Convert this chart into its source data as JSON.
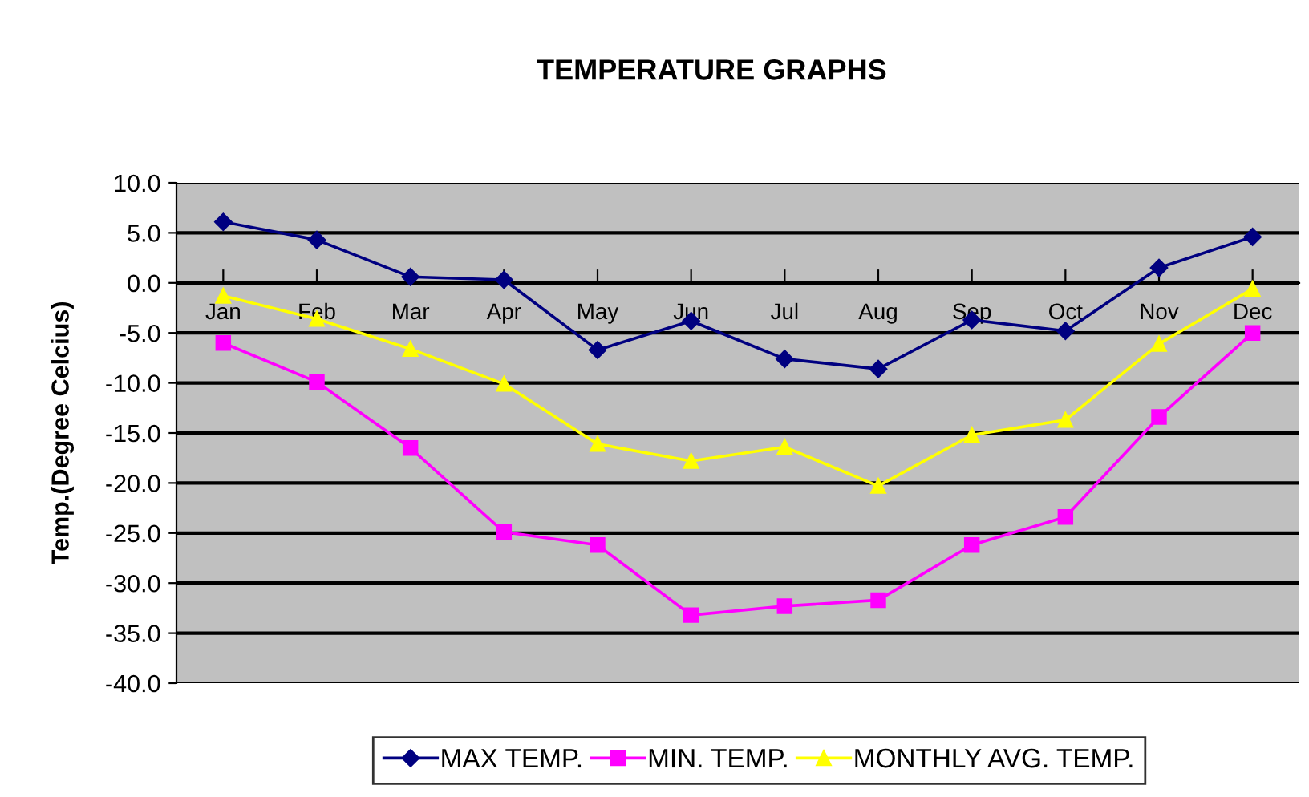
{
  "chart_data": {
    "type": "line",
    "title": "TEMPERATURE GRAPHS",
    "ylabel": "Temp.(Degree Celcius)",
    "categories": [
      "Jan",
      "Feb",
      "Mar",
      "Apr",
      "May",
      "Jun",
      "Jul",
      "Aug",
      "Sep",
      "Oct",
      "Nov",
      "Dec"
    ],
    "series": [
      {
        "name": "MAX TEMP.",
        "color": "#000080",
        "marker": "diamond",
        "values": [
          6.1,
          4.3,
          0.6,
          0.3,
          -6.7,
          -3.8,
          -7.6,
          -8.6,
          -3.7,
          -4.8,
          1.5,
          4.6
        ]
      },
      {
        "name": "MIN. TEMP.",
        "color": "#ff00ff",
        "marker": "square",
        "values": [
          -6.0,
          -9.9,
          -16.5,
          -24.9,
          -26.2,
          -33.2,
          -32.3,
          -31.7,
          -26.2,
          -23.4,
          -13.4,
          -5.0
        ]
      },
      {
        "name": "MONTHLY AVG. TEMP.",
        "color": "#ffff00",
        "marker": "triangle",
        "values": [
          -1.3,
          -3.6,
          -6.6,
          -10.1,
          -16.1,
          -17.8,
          -16.4,
          -20.3,
          -15.2,
          -13.7,
          -6.1,
          -0.6
        ]
      }
    ],
    "ylim": [
      -40,
      10
    ],
    "yticks": [
      {
        "value": -40,
        "label": "-40.0"
      },
      {
        "value": -35,
        "label": "-35.0"
      },
      {
        "value": -30,
        "label": "-30.0"
      },
      {
        "value": -25,
        "label": "-25.0"
      },
      {
        "value": -20,
        "label": "-20.0"
      },
      {
        "value": -15,
        "label": "-15.0"
      },
      {
        "value": -10,
        "label": "-10.0"
      },
      {
        "value": -5,
        "label": "-5.0"
      },
      {
        "value": 0,
        "label": "0.0"
      },
      {
        "value": 5,
        "label": "5.0"
      },
      {
        "value": 10,
        "label": "10.0"
      }
    ],
    "grid": "y",
    "legend": "bottom",
    "line_style": "solid"
  }
}
